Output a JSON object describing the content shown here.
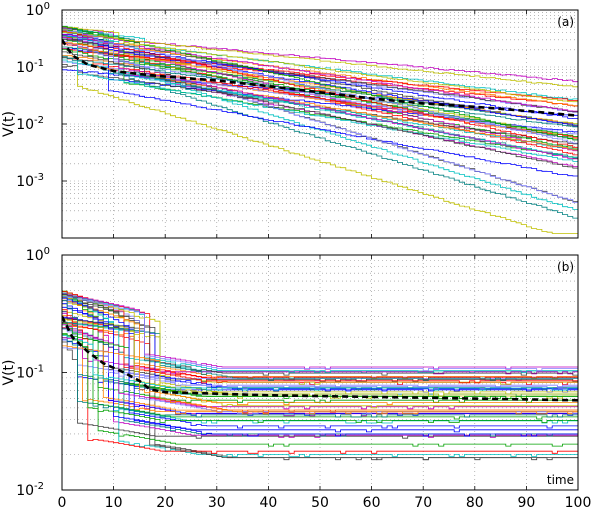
{
  "chart_data": [
    {
      "type": "line",
      "panel_label": "(a)",
      "ylabel": "V(t)",
      "xlabel": "",
      "xlim": [
        0,
        100
      ],
      "ylim": [
        0.0001,
        1
      ],
      "yscale": "log",
      "grid": "dotted",
      "x_ticks": [
        0,
        10,
        20,
        30,
        40,
        50,
        60,
        70,
        80,
        90,
        100
      ],
      "y_ticks": [
        {
          "base": "10",
          "exp": "0"
        },
        {
          "base": "10",
          "exp": "-1"
        },
        {
          "base": "10",
          "exp": "-2"
        },
        {
          "base": "10",
          "exp": "-3"
        }
      ],
      "series_count": 48,
      "mean": {
        "style": "black dashed",
        "x": [
          0,
          2,
          5,
          10,
          15,
          20,
          30,
          40,
          50,
          60,
          70,
          80,
          90,
          100
        ],
        "y": [
          0.3,
          0.16,
          0.11,
          0.085,
          0.075,
          0.068,
          0.058,
          0.046,
          0.036,
          0.028,
          0.023,
          0.02,
          0.017,
          0.014
        ]
      }
    },
    {
      "type": "line",
      "panel_label": "(b)",
      "ylabel": "V(t)",
      "xlabel": "time",
      "xlim": [
        0,
        100
      ],
      "ylim": [
        0.01,
        1
      ],
      "yscale": "log",
      "grid": "dotted",
      "x_ticks": [
        0,
        10,
        20,
        30,
        40,
        50,
        60,
        70,
        80,
        90,
        100
      ],
      "y_ticks": [
        {
          "base": "10",
          "exp": "0"
        },
        {
          "base": "10",
          "exp": "-1"
        },
        {
          "base": "10",
          "exp": "-2"
        }
      ],
      "series_count": 52,
      "mean": {
        "style": "black dashed",
        "x": [
          0,
          2,
          5,
          8,
          12,
          15,
          17,
          20,
          30,
          40,
          50,
          60,
          70,
          80,
          90,
          100
        ],
        "y": [
          0.3,
          0.2,
          0.15,
          0.12,
          0.1,
          0.085,
          0.072,
          0.068,
          0.066,
          0.064,
          0.063,
          0.062,
          0.061,
          0.06,
          0.059,
          0.058
        ]
      }
    }
  ],
  "colors": [
    "#0000ff",
    "#00a000",
    "#ff0000",
    "#00c0c0",
    "#c000c0",
    "#c0c000",
    "#404040",
    "#8080ff",
    "#ff8000",
    "#008080"
  ]
}
